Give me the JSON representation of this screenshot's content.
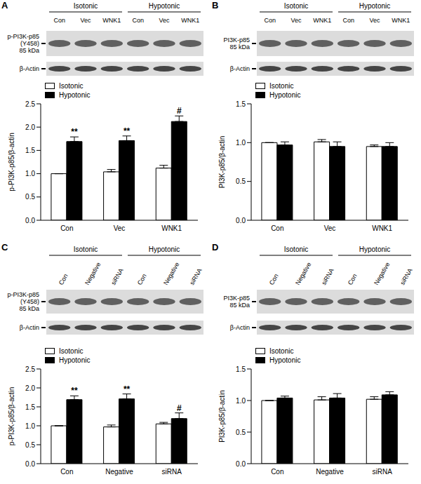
{
  "chart_data": [
    {
      "type": "bar",
      "title": "A",
      "blot": {
        "groups": [
          "Isotonic",
          "Hypotonic"
        ],
        "lanes": [
          "Con",
          "Vec",
          "WNK1",
          "Con",
          "Vec",
          "WNK1"
        ],
        "bands": [
          [
            "p-PI3K-p85",
            "(Y458)",
            "85 kDa"
          ],
          [
            "β-Actin"
          ]
        ]
      },
      "categories": [
        "Con",
        "Vec",
        "WNK1"
      ],
      "series": [
        {
          "name": "Isotonic",
          "color": "#ffffff",
          "values": [
            1.0,
            1.04,
            1.12
          ],
          "errors": [
            0,
            0.05,
            0.06
          ],
          "annotations": [
            null,
            null,
            null
          ]
        },
        {
          "name": "Hypotonic",
          "color": "#000000",
          "values": [
            1.69,
            1.71,
            2.12
          ],
          "errors": [
            0.1,
            0.1,
            0.12
          ],
          "annotations": [
            "**",
            "**",
            "#"
          ]
        }
      ],
      "y_label": "p-PI3K-p85/β-actin",
      "ylim": [
        0,
        2.5
      ],
      "yticks": [
        {
          "value": 0,
          "label": "0.0"
        },
        {
          "value": 0.5,
          "label": "0.5"
        },
        {
          "value": 1,
          "label": "1.0"
        },
        {
          "value": 1.5,
          "label": "1.5"
        },
        {
          "value": 2,
          "label": "2.0"
        },
        {
          "value": 2.5,
          "label": "2.5"
        }
      ],
      "legend": "upper left",
      "grid": false
    },
    {
      "type": "bar",
      "title": "B",
      "blot": {
        "groups": [
          "Isotonic",
          "Hypotonic"
        ],
        "lanes": [
          "Con",
          "Vec",
          "WNK1",
          "Con",
          "Vec",
          "WNK1"
        ],
        "bands": [
          [
            "PI3K-p85",
            "85 kDa"
          ],
          [
            "β-Actin"
          ]
        ]
      },
      "categories": [
        "Con",
        "Vec",
        "WNK1"
      ],
      "series": [
        {
          "name": "Isotonic",
          "color": "#ffffff",
          "values": [
            1.0,
            1.01,
            0.95
          ],
          "errors": [
            0,
            0.03,
            0.02
          ],
          "annotations": [
            null,
            null,
            null
          ]
        },
        {
          "name": "Hypotonic",
          "color": "#000000",
          "values": [
            0.97,
            0.95,
            0.95
          ],
          "errors": [
            0.04,
            0.06,
            0.05
          ],
          "annotations": [
            null,
            null,
            null
          ]
        }
      ],
      "y_label": "PI3K-p85/β-actin",
      "ylim": [
        0,
        1.5
      ],
      "yticks": [
        {
          "value": 0,
          "label": "0.0"
        },
        {
          "value": 0.5,
          "label": "0.5"
        },
        {
          "value": 1,
          "label": "1.0"
        },
        {
          "value": 1.5,
          "label": "1.5"
        }
      ],
      "legend": "upper left",
      "grid": false
    },
    {
      "type": "bar",
      "title": "C",
      "blot": {
        "groups": [
          "Isotonic",
          "Hypotonic"
        ],
        "lanes": [
          "Con",
          "Negative",
          "siRNA",
          "Con",
          "Negative",
          "siRNA"
        ],
        "bands": [
          [
            "p-PI3K-p85",
            "(Y458)",
            "85 kDa"
          ],
          [
            "β-Actin"
          ]
        ]
      },
      "categories": [
        "Con",
        "Negative",
        "siRNA"
      ],
      "series": [
        {
          "name": "Isotonic",
          "color": "#ffffff",
          "values": [
            1.0,
            0.97,
            1.05
          ],
          "errors": [
            0,
            0.05,
            0.04
          ],
          "annotations": [
            null,
            null,
            null
          ]
        },
        {
          "name": "Hypotonic",
          "color": "#000000",
          "values": [
            1.69,
            1.71,
            1.19
          ],
          "errors": [
            0.1,
            0.13,
            0.15
          ],
          "annotations": [
            "**",
            "**",
            "#"
          ]
        }
      ],
      "y_label": "p-PI3K-p85/β-actin",
      "ylim": [
        0,
        2.5
      ],
      "yticks": [
        {
          "value": 0,
          "label": "0.0"
        },
        {
          "value": 0.5,
          "label": "0.5"
        },
        {
          "value": 1,
          "label": "1.0"
        },
        {
          "value": 1.5,
          "label": "1.5"
        },
        {
          "value": 2,
          "label": "2.0"
        },
        {
          "value": 2.5,
          "label": "2.5"
        }
      ],
      "legend": "upper left",
      "grid": false
    },
    {
      "type": "bar",
      "title": "D",
      "blot": {
        "groups": [
          "Isotonic",
          "Hypotonic"
        ],
        "lanes": [
          "Con",
          "Negative",
          "siRNA",
          "Con",
          "Negative",
          "siRNA"
        ],
        "bands": [
          [
            "PI3K-p85",
            "85 kDa"
          ],
          [
            "β-Actin"
          ]
        ]
      },
      "categories": [
        "Con",
        "Negative",
        "siRNA"
      ],
      "series": [
        {
          "name": "Isotonic",
          "color": "#ffffff",
          "values": [
            1.0,
            1.01,
            1.02
          ],
          "errors": [
            0,
            0.05,
            0.04
          ],
          "annotations": [
            null,
            null,
            null
          ]
        },
        {
          "name": "Hypotonic",
          "color": "#000000",
          "values": [
            1.04,
            1.04,
            1.09
          ],
          "errors": [
            0.03,
            0.07,
            0.05
          ],
          "annotations": [
            null,
            null,
            null
          ]
        }
      ],
      "y_label": "PI3K-p85/β-actin",
      "ylim": [
        0,
        1.5
      ],
      "yticks": [
        {
          "value": 0,
          "label": "0.0"
        },
        {
          "value": 0.5,
          "label": "0.5"
        },
        {
          "value": 1,
          "label": "1.0"
        },
        {
          "value": 1.5,
          "label": "1.5"
        }
      ],
      "legend": "upper left",
      "grid": false
    }
  ]
}
